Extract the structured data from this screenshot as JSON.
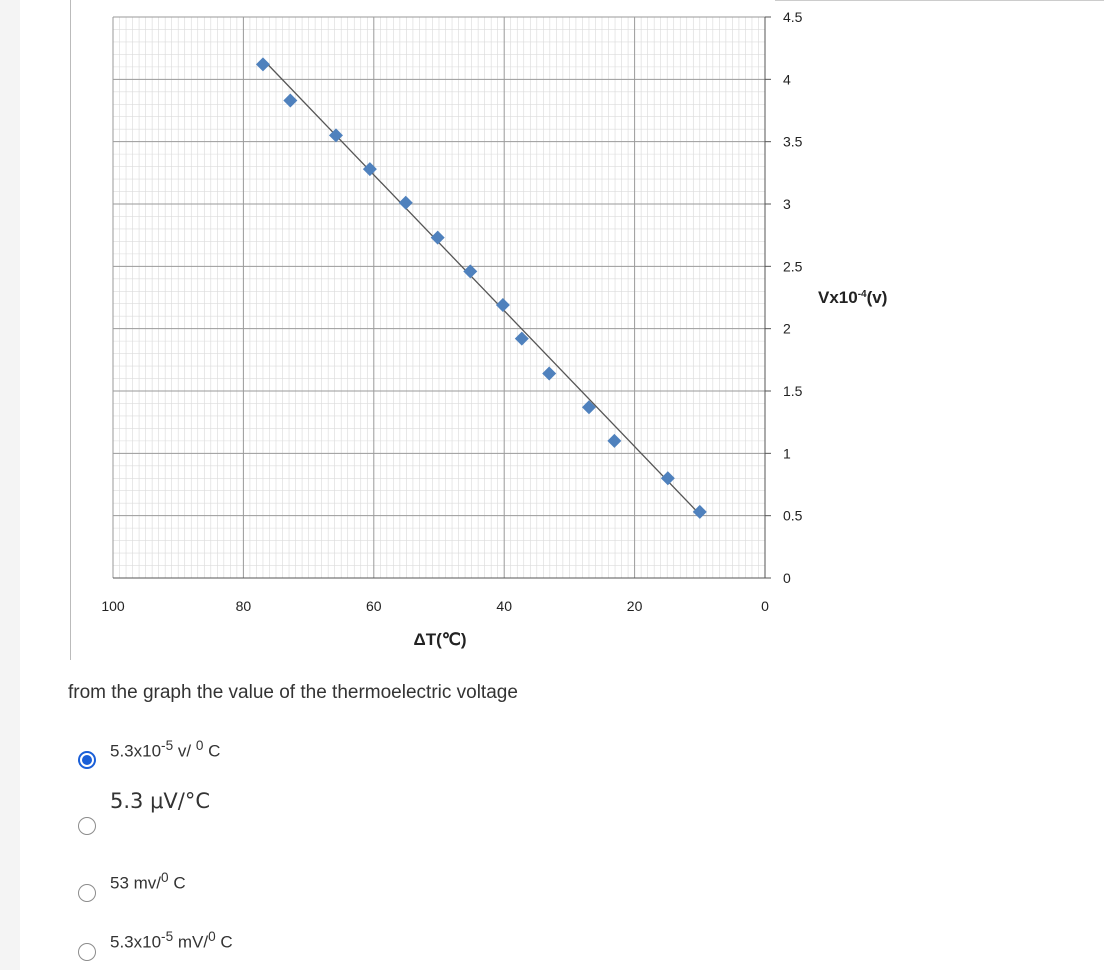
{
  "chart_data": {
    "type": "scatter",
    "xlabel": "ΔT(℃)",
    "ylabel": "Vx10-4(v)",
    "ylabel_base": "Vx10",
    "ylabel_exp": "-4",
    "ylabel_unit": "(v)",
    "x_reversed": true,
    "xlim": [
      100,
      0
    ],
    "ylim": [
      0,
      4.5
    ],
    "x_ticks": [
      "100",
      "80",
      "60",
      "40",
      "20",
      "0"
    ],
    "y_ticks": [
      "0",
      "0.5",
      "1",
      "1.5",
      "2",
      "2.5",
      "3",
      "3.5",
      "4",
      "4.5"
    ],
    "grid": true,
    "y_axis_side": "right",
    "marker_color": "#4f81bd",
    "line_color": "#555555",
    "points": [
      {
        "x": 77,
        "y": 4.12
      },
      {
        "x": 72.8,
        "y": 3.83
      },
      {
        "x": 65.8,
        "y": 3.55
      },
      {
        "x": 60.6,
        "y": 3.28
      },
      {
        "x": 55.1,
        "y": 3.01
      },
      {
        "x": 50.2,
        "y": 2.73
      },
      {
        "x": 45.2,
        "y": 2.46
      },
      {
        "x": 40.2,
        "y": 2.19
      },
      {
        "x": 37.3,
        "y": 1.92
      },
      {
        "x": 33.1,
        "y": 1.64
      },
      {
        "x": 27.0,
        "y": 1.37
      },
      {
        "x": 23.1,
        "y": 1.1
      },
      {
        "x": 14.9,
        "y": 0.8
      },
      {
        "x": 10.0,
        "y": 0.53
      }
    ],
    "trendline": [
      {
        "x": 77,
        "y": 4.16
      },
      {
        "x": 10,
        "y": 0.51
      }
    ]
  },
  "question": {
    "prompt": "from the graph the value of the thermoelectric voltage",
    "selected_index": 0,
    "accent_color": "#1a5fd8",
    "options": [
      {
        "base": "5.3x10",
        "exp": "-5",
        "unit": " v/",
        "deg": "0",
        "tail": " C"
      },
      {
        "base": "5.3 μV/",
        "exp": "",
        "unit": "",
        "deg": "",
        "tail": "°C"
      },
      {
        "base": "53 mv/",
        "exp": "",
        "unit": "",
        "deg": "0",
        "tail": " C"
      },
      {
        "base": "5.3x10",
        "exp": "-5",
        "unit": " mV/",
        "deg": "0",
        "tail": " C"
      }
    ]
  }
}
